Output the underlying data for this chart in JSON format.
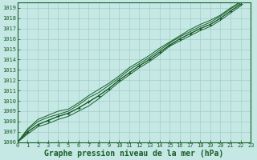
{
  "xlabel": "Graphe pression niveau de la mer (hPa)",
  "bg_color": "#c5e8e4",
  "grid_color": "#9ecfca",
  "line_color": "#1a5c28",
  "xlim": [
    0,
    23
  ],
  "ylim": [
    1006,
    1019.5
  ],
  "xticks": [
    0,
    1,
    2,
    3,
    4,
    5,
    6,
    7,
    8,
    9,
    10,
    11,
    12,
    13,
    14,
    15,
    16,
    17,
    18,
    19,
    20,
    21,
    22,
    23
  ],
  "yticks": [
    1006,
    1007,
    1008,
    1009,
    1010,
    1011,
    1012,
    1013,
    1014,
    1015,
    1016,
    1017,
    1018,
    1019
  ],
  "series": [
    [
      1006.0,
      1006.8,
      1007.5,
      1007.8,
      1008.2,
      1008.5,
      1009.0,
      1009.5,
      1010.2,
      1011.0,
      1011.8,
      1012.5,
      1013.2,
      1013.8,
      1014.5,
      1015.3,
      1015.8,
      1016.3,
      1016.8,
      1017.2,
      1017.8,
      1018.5,
      1019.2
    ],
    [
      1006.0,
      1007.0,
      1007.7,
      1008.1,
      1008.5,
      1008.8,
      1009.3,
      1009.9,
      1010.5,
      1011.2,
      1012.0,
      1012.7,
      1013.4,
      1014.0,
      1014.7,
      1015.4,
      1016.0,
      1016.5,
      1017.0,
      1017.4,
      1018.0,
      1018.7,
      1019.35
    ],
    [
      1006.0,
      1007.2,
      1008.0,
      1008.4,
      1008.7,
      1009.0,
      1009.6,
      1010.3,
      1010.8,
      1011.5,
      1012.2,
      1013.0,
      1013.6,
      1014.2,
      1014.9,
      1015.6,
      1016.2,
      1016.7,
      1017.2,
      1017.6,
      1018.2,
      1018.9,
      1019.5
    ],
    [
      1006.0,
      1007.3,
      1008.2,
      1008.6,
      1009.0,
      1009.2,
      1009.8,
      1010.5,
      1011.1,
      1011.7,
      1012.4,
      1013.2,
      1013.8,
      1014.4,
      1015.1,
      1015.7,
      1016.3,
      1016.9,
      1017.4,
      1017.8,
      1018.3,
      1019.0,
      1019.6
    ]
  ],
  "main_series": [
    1006.0,
    1007.0,
    1007.7,
    1008.1,
    1008.5,
    1008.8,
    1009.3,
    1009.9,
    1010.5,
    1011.2,
    1012.0,
    1012.7,
    1013.4,
    1014.0,
    1014.7,
    1015.4,
    1016.0,
    1016.5,
    1017.0,
    1017.4,
    1018.0,
    1018.7,
    1019.35
  ],
  "font_family": "monospace",
  "tick_fontsize": 5.0,
  "label_fontsize": 7.0
}
